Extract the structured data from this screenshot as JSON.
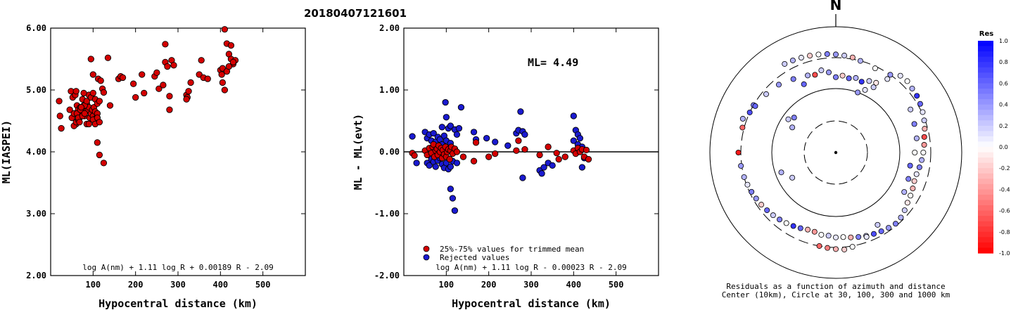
{
  "title": "20180407121601",
  "chart_data": [
    {
      "type": "scatter",
      "ylabel": "ML(IASPEI)",
      "xlabel": "Hypocentral distance (km)",
      "xlim": [
        0,
        600
      ],
      "ylim": [
        2.0,
        6.0
      ],
      "xticks": [
        "100",
        "200",
        "300",
        "400",
        "500"
      ],
      "yticks": [
        "2.00",
        "3.00",
        "4.00",
        "5.00",
        "6.00"
      ],
      "annotation": "log A(nm) + 1.11 log R + 0.00189 R - 2.09",
      "point_color": "#d40000",
      "x": [
        20,
        22,
        25,
        45,
        50,
        55,
        60,
        48,
        52,
        58,
        62,
        65,
        68,
        70,
        72,
        75,
        78,
        80,
        82,
        85,
        88,
        90,
        92,
        95,
        98,
        100,
        102,
        105,
        108,
        110,
        55,
        60,
        65,
        70,
        75,
        80,
        85,
        90,
        95,
        100,
        105,
        110,
        115,
        60,
        62,
        65,
        68,
        70,
        72,
        75,
        78,
        80,
        85,
        90,
        100,
        105,
        110,
        115,
        95,
        100,
        112,
        118,
        122,
        125,
        135,
        160,
        165,
        170,
        110,
        115,
        125,
        140,
        195,
        200,
        215,
        220,
        245,
        250,
        255,
        265,
        270,
        270,
        275,
        280,
        285,
        290,
        320,
        322,
        325,
        330,
        350,
        355,
        360,
        370,
        400,
        403,
        405,
        410,
        415,
        420,
        425,
        430,
        435,
        410,
        405,
        415,
        420,
        425,
        430,
        320,
        280
      ],
      "y": [
        4.82,
        4.58,
        4.38,
        4.68,
        4.55,
        4.62,
        4.45,
        4.98,
        4.88,
        4.92,
        4.75,
        4.68,
        4.55,
        4.72,
        4.62,
        4.85,
        4.75,
        4.58,
        4.65,
        4.78,
        4.68,
        4.72,
        4.55,
        4.62,
        4.68,
        4.58,
        4.72,
        4.65,
        4.55,
        4.62,
        4.42,
        4.48,
        4.52,
        4.58,
        4.62,
        4.75,
        4.82,
        4.92,
        4.88,
        4.95,
        4.85,
        4.78,
        4.82,
        4.98,
        4.62,
        4.55,
        4.48,
        4.68,
        4.72,
        4.58,
        4.95,
        4.62,
        4.45,
        4.45,
        4.52,
        4.45,
        4.55,
        4.48,
        5.5,
        5.25,
        5.18,
        5.15,
        5.02,
        4.96,
        5.52,
        5.18,
        5.22,
        5.2,
        4.15,
        3.95,
        3.82,
        4.75,
        5.1,
        4.88,
        5.25,
        4.95,
        5.22,
        5.28,
        5.02,
        5.08,
        5.45,
        5.74,
        5.38,
        4.9,
        5.48,
        5.4,
        4.92,
        4.88,
        4.98,
        5.12,
        5.25,
        5.48,
        5.2,
        5.18,
        5.32,
        5.25,
        5.35,
        5.98,
        5.75,
        5.58,
        5.5,
        5.42,
        5.48,
        5.0,
        5.12,
        5.3,
        5.38,
        5.72,
        5.45,
        4.85,
        4.68
      ]
    },
    {
      "type": "scatter",
      "ylabel": "ML - ML(evt)",
      "xlabel": "Hypocentral distance (km)",
      "xlim": [
        0,
        600
      ],
      "ylim": [
        -2.0,
        2.0
      ],
      "xticks": [
        "100",
        "200",
        "300",
        "400",
        "500"
      ],
      "yticks": [
        "-2.00",
        "-1.00",
        "0.00",
        "1.00",
        "2.00"
      ],
      "ml_label": "ML= 4.49",
      "annotation": "log A(nm) + 1.11 log R - 0.00023 R - 2.09",
      "legend": [
        {
          "label": "25%-75% values for trimmed mean",
          "color": "#d40000"
        },
        {
          "label": "Rejected values",
          "color": "#1a1ad0"
        }
      ],
      "series": [
        {
          "name": "25%-75% values for trimmed mean",
          "x": [
            20,
            25,
            50,
            55,
            60,
            65,
            68,
            70,
            72,
            75,
            78,
            80,
            82,
            85,
            88,
            90,
            92,
            95,
            98,
            100,
            102,
            105,
            108,
            110,
            112,
            115,
            120,
            125,
            140,
            165,
            170,
            200,
            215,
            265,
            270,
            285,
            320,
            340,
            360,
            365,
            380,
            400,
            405,
            410,
            415,
            420,
            425,
            430,
            435
          ],
          "y": [
            -0.02,
            -0.06,
            0.02,
            -0.05,
            0.06,
            -0.02,
            0.08,
            0.12,
            -0.08,
            0.02,
            0.05,
            -0.05,
            0.1,
            0.0,
            0.06,
            -0.1,
            0.03,
            -0.04,
            0.08,
            -0.08,
            0.0,
            0.04,
            -0.12,
            0.02,
            0.08,
            -0.03,
            0.05,
            0.0,
            -0.08,
            -0.15,
            0.15,
            -0.08,
            -0.03,
            0.02,
            0.18,
            0.04,
            -0.05,
            0.08,
            -0.02,
            -0.12,
            -0.08,
            0.02,
            -0.03,
            0.06,
            0.0,
            0.04,
            -0.08,
            0.03,
            -0.12
          ]
        },
        {
          "name": "Rejected values",
          "x": [
            20,
            30,
            50,
            55,
            60,
            65,
            70,
            75,
            80,
            85,
            90,
            95,
            100,
            105,
            110,
            55,
            60,
            65,
            70,
            75,
            80,
            85,
            90,
            95,
            100,
            105,
            110,
            115,
            98,
            100,
            110,
            120,
            125,
            130,
            135,
            110,
            115,
            120,
            125,
            90,
            165,
            170,
            195,
            215,
            245,
            265,
            270,
            275,
            280,
            285,
            280,
            320,
            325,
            330,
            340,
            350,
            400,
            405,
            410,
            415,
            420,
            425,
            400,
            410,
            420
          ],
          "y": [
            0.25,
            -0.18,
            0.32,
            0.22,
            0.28,
            0.18,
            0.3,
            0.16,
            0.24,
            0.2,
            0.12,
            0.26,
            0.18,
            0.38,
            0.14,
            -0.18,
            -0.22,
            -0.12,
            -0.16,
            -0.24,
            -0.14,
            -0.1,
            -0.2,
            -0.26,
            -0.18,
            -0.28,
            -0.24,
            -0.15,
            0.8,
            0.56,
            0.42,
            0.36,
            0.28,
            0.38,
            0.72,
            -0.6,
            -0.75,
            -0.95,
            -0.18,
            0.4,
            0.32,
            0.2,
            0.22,
            0.16,
            0.1,
            0.3,
            0.35,
            0.65,
            0.33,
            0.28,
            -0.42,
            -0.3,
            -0.35,
            -0.25,
            -0.18,
            -0.22,
            0.58,
            0.35,
            0.28,
            0.22,
            -0.25,
            -0.1,
            0.18,
            0.12,
            0.08
          ]
        }
      ]
    },
    {
      "type": "scatter",
      "title": "N",
      "caption": "Residuals as a function of azimuth and distance",
      "caption2": "Center (10km), Circle at 30, 100, 300 and 1000 km",
      "colorbar_title": "Res",
      "colorbar_ticks": [
        "1.0",
        "0.8",
        "0.6",
        "0.4",
        "0.2",
        "0.0",
        "-0.2",
        "-0.4",
        "-0.6",
        "-0.8",
        "-1.0"
      ],
      "colorbar_range": [
        -1.0,
        1.0
      ],
      "colorbar_colors": {
        "positive": "#0000ff",
        "zero": "#ffffff",
        "negative": "#ff0000"
      },
      "rings_km": [
        30,
        100,
        300,
        1000
      ],
      "center_km": 10,
      "azimuth_deg": [
        300,
        290,
        335,
        345,
        350,
        355,
        0,
        5,
        10,
        15,
        20,
        25,
        30,
        340,
        330,
        320,
        310,
        300,
        295,
        285,
        270,
        262,
        255,
        250,
        245,
        240,
        235,
        230,
        225,
        220,
        215,
        210,
        205,
        200,
        195,
        190,
        185,
        180,
        175,
        170,
        165,
        160,
        155,
        150,
        145,
        140,
        135,
        130,
        125,
        120,
        115,
        110,
        105,
        100,
        95,
        90,
        85,
        80,
        75,
        70,
        65,
        60,
        55,
        50,
        45,
        40,
        35,
        30,
        25,
        20,
        300,
        305,
        310,
        250,
        240,
        190,
        185,
        180,
        175,
        170,
        160,
        150,
        120,
        110,
        100,
        90,
        80,
        70,
        60,
        35,
        25,
        15,
        10,
        5,
        0,
        355,
        350,
        345,
        340,
        335,
        330
      ],
      "distance_km": [
        300,
        350,
        150,
        180,
        200,
        180,
        150,
        160,
        150,
        160,
        150,
        170,
        180,
        190,
        210,
        240,
        260,
        280,
        300,
        320,
        330,
        310,
        300,
        290,
        280,
        270,
        260,
        250,
        240,
        230,
        220,
        210,
        200,
        190,
        190,
        200,
        200,
        210,
        210,
        220,
        230,
        240,
        250,
        260,
        270,
        280,
        270,
        250,
        230,
        220,
        210,
        200,
        200,
        210,
        220,
        230,
        240,
        250,
        270,
        290,
        310,
        330,
        350,
        360,
        380,
        370,
        300,
        150,
        120,
        100,
        60,
        80,
        70,
        80,
        60,
        300,
        310,
        320,
        330,
        310,
        250,
        200,
        170,
        160,
        150,
        170,
        190,
        200,
        220,
        250,
        280,
        300,
        320,
        330,
        340,
        350,
        360,
        370,
        380,
        390,
        400
      ],
      "residual": [
        0.5,
        0.3,
        0.6,
        -0.7,
        0.2,
        0.4,
        0.5,
        -0.2,
        0.6,
        0.3,
        0.8,
        0.2,
        -0.1,
        0.3,
        0.5,
        0.4,
        0.2,
        0.6,
        0.7,
        -0.6,
        -0.9,
        0.4,
        0.3,
        0.1,
        0.5,
        0.4,
        -0.2,
        0.6,
        0.2,
        0.5,
        0.0,
        0.8,
        0.6,
        -0.3,
        -0.4,
        0.0,
        0.2,
        0.1,
        0.0,
        -0.3,
        0.5,
        0.2,
        0.7,
        0.6,
        0.4,
        0.5,
        0.3,
        0.2,
        -0.1,
        0.0,
        -0.3,
        -0.2,
        0.1,
        0.5,
        0.3,
        0.0,
        -0.4,
        -0.7,
        -0.3,
        0.2,
        0.1,
        0.6,
        0.8,
        0.3,
        0.0,
        0.1,
        0.4,
        0.2,
        0.1,
        0.4,
        0.3,
        0.2,
        0.5,
        0.3,
        0.2,
        -0.6,
        -0.5,
        -0.3,
        -0.2,
        0.0,
        0.1,
        0.2,
        0.3,
        0.5,
        0.6,
        0.0,
        0.3,
        0.5,
        0.2,
        0.1,
        0.0,
        0.3,
        -0.3,
        0.2,
        0.4,
        0.5,
        0.0,
        -0.2,
        0.1,
        0.3,
        0.2
      ]
    }
  ]
}
